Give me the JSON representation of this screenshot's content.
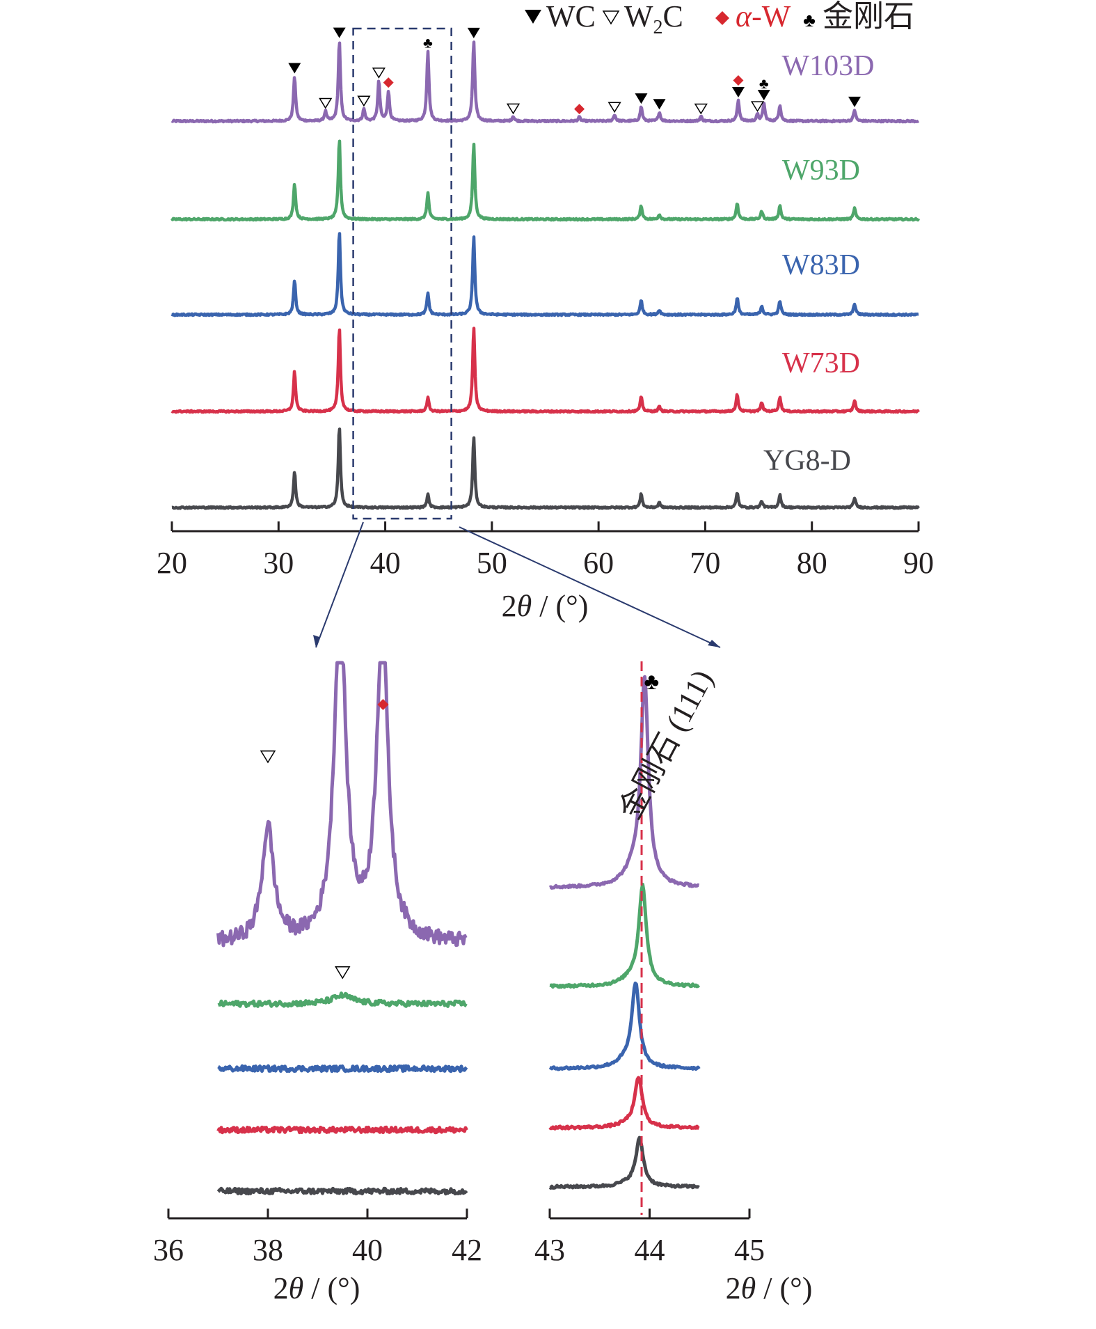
{
  "chart_data": [
    {
      "type": "line",
      "name": "main-xrd",
      "title": "",
      "xlabel": "2θ / (°)",
      "ylabel": "",
      "xlim": [
        20,
        90
      ],
      "xticks": [
        20,
        30,
        40,
        50,
        60,
        70,
        80,
        90
      ],
      "zoom_box_x": [
        37,
        46.2
      ],
      "legend": {
        "placement": "top-right",
        "items": [
          {
            "symbol": "▼",
            "label": "WC",
            "color": "#231f20"
          },
          {
            "symbol": "▽",
            "label": "W",
            "sub": "2",
            "label2": "C",
            "color": "#231f20"
          },
          {
            "symbol": "◆",
            "label": "α-W",
            "color": "#d7282f"
          },
          {
            "symbol": "♣",
            "label": "金刚石",
            "color": "#231f20"
          }
        ]
      },
      "series": [
        {
          "name": "W103D",
          "color": "#8b68b0",
          "offset": 4,
          "peaks": [
            [
              31.5,
              0.56
            ],
            [
              34.4,
              0.12
            ],
            [
              35.7,
              1.0
            ],
            [
              38.0,
              0.15
            ],
            [
              39.4,
              0.5
            ],
            [
              40.3,
              0.37
            ],
            [
              44.0,
              0.88
            ],
            [
              48.3,
              1.0
            ],
            [
              52.0,
              0.06
            ],
            [
              58.2,
              0.05
            ],
            [
              61.5,
              0.08
            ],
            [
              64.0,
              0.18
            ],
            [
              65.7,
              0.11
            ],
            [
              69.6,
              0.06
            ],
            [
              73.1,
              0.26
            ],
            [
              74.9,
              0.08
            ],
            [
              75.5,
              0.22
            ],
            [
              77.0,
              0.2
            ],
            [
              84.0,
              0.14
            ]
          ]
        },
        {
          "name": "W93D",
          "color": "#4ea66a",
          "offset": 3,
          "peaks": [
            [
              31.5,
              0.45
            ],
            [
              35.7,
              1.0
            ],
            [
              44.0,
              0.33
            ],
            [
              48.3,
              0.95
            ],
            [
              64.0,
              0.17
            ],
            [
              65.7,
              0.06
            ],
            [
              73.0,
              0.2
            ],
            [
              75.3,
              0.1
            ],
            [
              77.0,
              0.17
            ],
            [
              84.0,
              0.14
            ]
          ]
        },
        {
          "name": "W83D",
          "color": "#3a64ae",
          "offset": 2,
          "peaks": [
            [
              31.5,
              0.43
            ],
            [
              35.7,
              1.05
            ],
            [
              44.0,
              0.27
            ],
            [
              48.3,
              0.98
            ],
            [
              64.0,
              0.18
            ],
            [
              65.7,
              0.06
            ],
            [
              73.0,
              0.21
            ],
            [
              75.3,
              0.11
            ],
            [
              77.0,
              0.17
            ],
            [
              84.0,
              0.14
            ]
          ]
        },
        {
          "name": "W73D",
          "color": "#d7314a",
          "offset": 1,
          "peaks": [
            [
              31.5,
              0.5
            ],
            [
              35.7,
              1.05
            ],
            [
              44.0,
              0.17
            ],
            [
              48.3,
              1.05
            ],
            [
              64.0,
              0.18
            ],
            [
              65.7,
              0.06
            ],
            [
              73.0,
              0.21
            ],
            [
              75.3,
              0.11
            ],
            [
              77.0,
              0.18
            ],
            [
              84.0,
              0.14
            ]
          ]
        },
        {
          "name": "YG8-D",
          "color": "#47484d",
          "offset": 0,
          "peaks": [
            [
              31.5,
              0.45
            ],
            [
              35.7,
              1.02
            ],
            [
              44.0,
              0.16
            ],
            [
              48.3,
              0.88
            ],
            [
              64.0,
              0.17
            ],
            [
              65.7,
              0.06
            ],
            [
              73.0,
              0.18
            ],
            [
              75.3,
              0.08
            ],
            [
              77.0,
              0.16
            ],
            [
              84.0,
              0.12
            ]
          ]
        }
      ],
      "markers": [
        {
          "x": 31.5,
          "symbol": "WC"
        },
        {
          "x": 34.4,
          "symbol": "W2C"
        },
        {
          "x": 35.7,
          "symbol": "WC"
        },
        {
          "x": 38.0,
          "symbol": "W2C"
        },
        {
          "x": 39.4,
          "symbol": "W2C"
        },
        {
          "x": 40.3,
          "symbol": "alpha-W"
        },
        {
          "x": 44.0,
          "symbol": "diamond"
        },
        {
          "x": 48.3,
          "symbol": "WC"
        },
        {
          "x": 52.0,
          "symbol": "W2C"
        },
        {
          "x": 58.2,
          "symbol": "alpha-W"
        },
        {
          "x": 61.5,
          "symbol": "W2C"
        },
        {
          "x": 64.0,
          "symbol": "WC"
        },
        {
          "x": 65.7,
          "symbol": "WC"
        },
        {
          "x": 69.6,
          "symbol": "W2C"
        },
        {
          "x": 73.1,
          "symbol": "WC"
        },
        {
          "x": 73.1,
          "symbol": "alpha-W"
        },
        {
          "x": 74.9,
          "symbol": "W2C"
        },
        {
          "x": 75.5,
          "symbol": "WC"
        },
        {
          "x": 75.5,
          "symbol": "diamond"
        },
        {
          "x": 84.0,
          "symbol": "WC"
        }
      ]
    },
    {
      "type": "line",
      "name": "inset-left",
      "xlabel": "2θ / (°)",
      "xlim": [
        36,
        42
      ],
      "xticks": [
        36,
        38,
        40,
        42
      ],
      "data_range": [
        37,
        42
      ],
      "series": [
        {
          "name": "W103D",
          "color": "#8b68b0",
          "peaks": [
            [
              38.0,
              0.55
            ],
            [
              39.45,
              1.6
            ],
            [
              40.3,
              1.5
            ]
          ],
          "clipped": true
        },
        {
          "name": "W93D",
          "color": "#4ea66a",
          "peaks": [
            [
              39.5,
              0.04
            ]
          ]
        },
        {
          "name": "W83D",
          "color": "#3a64ae",
          "peaks": []
        },
        {
          "name": "W73D",
          "color": "#d7314a",
          "peaks": []
        },
        {
          "name": "YG8-D",
          "color": "#47484d",
          "peaks": []
        }
      ],
      "markers": [
        {
          "x": 38.0,
          "series": "W103D",
          "symbol": "W2C"
        },
        {
          "x": 40.3,
          "series": "W103D",
          "symbol": "alpha-W"
        },
        {
          "x": 39.5,
          "series": "W93D",
          "symbol": "W2C"
        }
      ]
    },
    {
      "type": "line",
      "name": "inset-right",
      "xlabel": "2θ / (°)",
      "xlim": [
        43,
        45
      ],
      "xticks": [
        43,
        44,
        45
      ],
      "data_range": [
        43,
        44.5
      ],
      "reference_line": {
        "x": 43.92,
        "label": "金刚石 (111)",
        "color": "#d7314a"
      },
      "series": [
        {
          "name": "W103D",
          "color": "#8b68b0",
          "peak": [
            43.95,
            1.0
          ]
        },
        {
          "name": "W93D",
          "color": "#4ea66a",
          "peak": [
            43.93,
            0.48
          ]
        },
        {
          "name": "W83D",
          "color": "#3a64ae",
          "peak": [
            43.86,
            0.41
          ]
        },
        {
          "name": "W73D",
          "color": "#d7314a",
          "peak": [
            43.89,
            0.24
          ]
        },
        {
          "name": "YG8-D",
          "color": "#47484d",
          "peak": [
            43.9,
            0.23
          ]
        }
      ],
      "markers": [
        {
          "x": 43.95,
          "series": "W103D",
          "symbol": "diamond"
        }
      ]
    }
  ],
  "labels": {
    "xlabel_prefix": "2",
    "xlabel_theta": "θ",
    "xlabel_suffix": " / (°)",
    "diamond_annotation": "金刚石 (111)"
  }
}
